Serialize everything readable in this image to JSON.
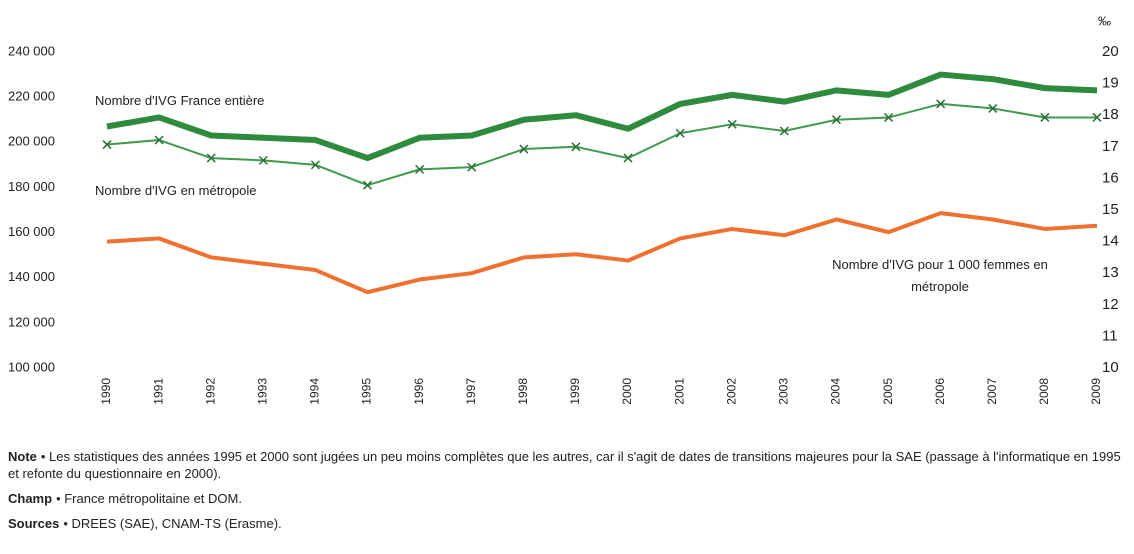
{
  "chart_data": {
    "type": "line",
    "categories": [
      "1990",
      "1991",
      "1992",
      "1993",
      "1994",
      "1995",
      "1996",
      "1997",
      "1998",
      "1999",
      "2000",
      "2001",
      "2002",
      "2003",
      "2004",
      "2005",
      "2006",
      "2007",
      "2008",
      "2009"
    ],
    "series": [
      {
        "name": "Nombre d'IVG France entière",
        "color": "#2e8b3e",
        "values": [
          207000,
          211000,
          203000,
          202000,
          201000,
          193000,
          202000,
          203000,
          210000,
          212000,
          206000,
          217000,
          221000,
          218000,
          223000,
          221000,
          230000,
          228000,
          224000,
          223000
        ]
      },
      {
        "name": "Nombre d'IVG en métropole",
        "color": "#3f9a4c",
        "values": [
          199000,
          201000,
          193000,
          192000,
          190000,
          181000,
          188000,
          189000,
          197000,
          198000,
          193000,
          204000,
          208000,
          205000,
          210000,
          211000,
          217000,
          215000,
          211000,
          211000
        ]
      },
      {
        "name": "Nombre d'IVG pour 1 000 femmes en métropole",
        "color": "#f07030",
        "axis": "y2",
        "values": [
          14.0,
          14.1,
          13.5,
          13.3,
          13.1,
          12.4,
          12.8,
          13.0,
          13.5,
          13.6,
          13.4,
          14.1,
          14.4,
          14.2,
          14.7,
          14.3,
          14.9,
          14.7,
          14.4,
          14.5
        ]
      }
    ],
    "ylim": [
      100000,
      240000
    ],
    "yticks": [
      {
        "value": 100000,
        "label": "100 000"
      },
      {
        "value": 120000,
        "label": "120 000"
      },
      {
        "value": 140000,
        "label": "140 000"
      },
      {
        "value": 160000,
        "label": "160 000"
      },
      {
        "value": 180000,
        "label": "180 000"
      },
      {
        "value": 200000,
        "label": "200 000"
      },
      {
        "value": 220000,
        "label": "220 000"
      },
      {
        "value": 240000,
        "label": "240 000"
      }
    ],
    "y2lim": [
      10,
      20
    ],
    "y2ticks": [
      10,
      11,
      12,
      13,
      14,
      15,
      16,
      17,
      18,
      19,
      20
    ],
    "y2label": "‰",
    "grid": false
  },
  "notes": [
    {
      "label": "Note",
      "text": "• Les statistiques des années 1995 et 2000 sont jugées un peu moins complètes que les autres, car il s'agit de dates de transitions majeures pour la SAE (passage à l'informatique en 1995 et refonte du questionnaire en 2000)."
    },
    {
      "label": "Champ",
      "text": "• France métropolitaine et DOM."
    },
    {
      "label": "Sources",
      "text": "• DREES (SAE), CNAM-TS (Erasme)."
    }
  ]
}
